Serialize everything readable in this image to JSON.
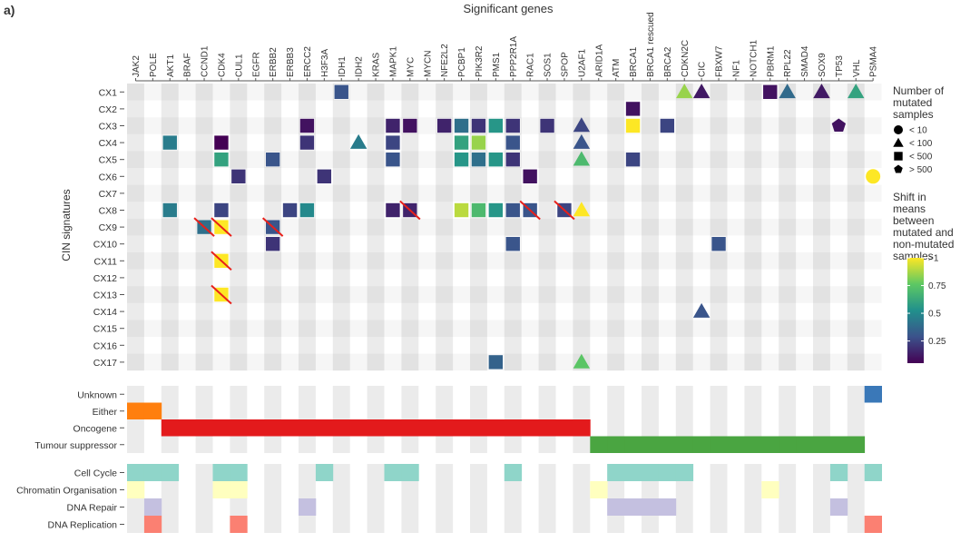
{
  "panel_label": "a)",
  "chart_data": {
    "type": "heatmap",
    "title": "Significant genes",
    "ylabel": "CIN signatures",
    "genes": [
      "JAK2",
      "POLE",
      "AKT1",
      "BRAF",
      "CCND1",
      "CDK4",
      "CUL1",
      "EGFR",
      "ERBB2",
      "ERBB3",
      "ERCC2",
      "H3F3A",
      "IDH1",
      "IDH2",
      "KRAS",
      "MAPK1",
      "MYC",
      "MYCN",
      "NFE2L2",
      "PCBP1",
      "PIK3R2",
      "PMS1",
      "PPP2R1A",
      "RAC1",
      "SOS1",
      "SPOP",
      "U2AF1",
      "ARID1A",
      "ATM",
      "BRCA1",
      "BRCA1 rescued",
      "BRCA2",
      "CDKN2C",
      "CIC",
      "FBXW7",
      "NF1",
      "NOTCH1",
      "PBRM1",
      "RPL22",
      "SMAD4",
      "SOX9",
      "TP53",
      "VHL",
      "PSMA4"
    ],
    "signatures": [
      "CX1",
      "CX2",
      "CX3",
      "CX4",
      "CX5",
      "CX6",
      "CX7",
      "CX8",
      "CX9",
      "CX10",
      "CX11",
      "CX12",
      "CX13",
      "CX14",
      "CX15",
      "CX16",
      "CX17"
    ],
    "cells": [
      {
        "sig": "CX1",
        "gene": "IDH1",
        "shape": "square",
        "shift": 0.3
      },
      {
        "sig": "CX1",
        "gene": "CDKN2C",
        "shape": "triangle",
        "shift": 0.85
      },
      {
        "sig": "CX1",
        "gene": "CIC",
        "shape": "triangle",
        "shift": 0.12
      },
      {
        "sig": "CX1",
        "gene": "PBRM1",
        "shape": "square",
        "shift": 0.1
      },
      {
        "sig": "CX1",
        "gene": "RPL22",
        "shape": "triangle",
        "shift": 0.38
      },
      {
        "sig": "CX1",
        "gene": "SOX9",
        "shape": "triangle",
        "shift": 0.12
      },
      {
        "sig": "CX1",
        "gene": "VHL",
        "shape": "triangle",
        "shift": 0.6
      },
      {
        "sig": "CX2",
        "gene": "BRCA1",
        "shape": "square",
        "shift": 0.1
      },
      {
        "sig": "CX3",
        "gene": "ERCC2",
        "shape": "square",
        "shift": 0.1
      },
      {
        "sig": "CX3",
        "gene": "MAPK1",
        "shape": "square",
        "shift": 0.15
      },
      {
        "sig": "CX3",
        "gene": "MYC",
        "shape": "square",
        "shift": 0.1
      },
      {
        "sig": "CX3",
        "gene": "NFE2L2",
        "shape": "square",
        "shift": 0.15
      },
      {
        "sig": "CX3",
        "gene": "PCBP1",
        "shape": "square",
        "shift": 0.4
      },
      {
        "sig": "CX3",
        "gene": "PIK3R2",
        "shape": "square",
        "shift": 0.2
      },
      {
        "sig": "CX3",
        "gene": "PMS1",
        "shape": "square",
        "shift": 0.55
      },
      {
        "sig": "CX3",
        "gene": "PPP2R1A",
        "shape": "square",
        "shift": 0.2
      },
      {
        "sig": "CX3",
        "gene": "SOS1",
        "shape": "square",
        "shift": 0.2
      },
      {
        "sig": "CX3",
        "gene": "U2AF1",
        "shape": "triangle",
        "shift": 0.25
      },
      {
        "sig": "CX3",
        "gene": "BRCA1",
        "shape": "square",
        "shift": 1.0
      },
      {
        "sig": "CX3",
        "gene": "BRCA2",
        "shape": "square",
        "shift": 0.25
      },
      {
        "sig": "CX3",
        "gene": "TP53",
        "shape": "pentagon",
        "shift": 0.1
      },
      {
        "sig": "CX4",
        "gene": "AKT1",
        "shape": "square",
        "shift": 0.45
      },
      {
        "sig": "CX4",
        "gene": "CDK4",
        "shape": "square",
        "shift": 0.05
      },
      {
        "sig": "CX4",
        "gene": "ERCC2",
        "shape": "square",
        "shift": 0.2
      },
      {
        "sig": "CX4",
        "gene": "IDH2",
        "shape": "triangle",
        "shift": 0.45
      },
      {
        "sig": "CX4",
        "gene": "MAPK1",
        "shape": "square",
        "shift": 0.25
      },
      {
        "sig": "CX4",
        "gene": "PCBP1",
        "shape": "square",
        "shift": 0.6
      },
      {
        "sig": "CX4",
        "gene": "PIK3R2",
        "shape": "square",
        "shift": 0.85
      },
      {
        "sig": "CX4",
        "gene": "PPP2R1A",
        "shape": "square",
        "shift": 0.3
      },
      {
        "sig": "CX4",
        "gene": "U2AF1",
        "shape": "triangle",
        "shift": 0.3
      },
      {
        "sig": "CX5",
        "gene": "CDK4",
        "shape": "square",
        "shift": 0.6
      },
      {
        "sig": "CX5",
        "gene": "ERBB2",
        "shape": "square",
        "shift": 0.3
      },
      {
        "sig": "CX5",
        "gene": "MAPK1",
        "shape": "square",
        "shift": 0.3
      },
      {
        "sig": "CX5",
        "gene": "PCBP1",
        "shape": "square",
        "shift": 0.55
      },
      {
        "sig": "CX5",
        "gene": "PIK3R2",
        "shape": "square",
        "shift": 0.4
      },
      {
        "sig": "CX5",
        "gene": "PMS1",
        "shape": "square",
        "shift": 0.55
      },
      {
        "sig": "CX5",
        "gene": "PPP2R1A",
        "shape": "square",
        "shift": 0.2
      },
      {
        "sig": "CX5",
        "gene": "U2AF1",
        "shape": "triangle",
        "shift": 0.7
      },
      {
        "sig": "CX5",
        "gene": "BRCA1",
        "shape": "square",
        "shift": 0.25
      },
      {
        "sig": "CX6",
        "gene": "CUL1",
        "shape": "square",
        "shift": 0.2
      },
      {
        "sig": "CX6",
        "gene": "H3F3A",
        "shape": "square",
        "shift": 0.2
      },
      {
        "sig": "CX6",
        "gene": "RAC1",
        "shape": "square",
        "shift": 0.1
      },
      {
        "sig": "CX6",
        "gene": "PSMA4",
        "shape": "circle",
        "shift": 1.0
      },
      {
        "sig": "CX8",
        "gene": "AKT1",
        "shape": "square",
        "shift": 0.45
      },
      {
        "sig": "CX8",
        "gene": "CDK4",
        "shape": "square",
        "shift": 0.25
      },
      {
        "sig": "CX8",
        "gene": "ERBB3",
        "shape": "square",
        "shift": 0.25
      },
      {
        "sig": "CX8",
        "gene": "ERCC2",
        "shape": "square",
        "shift": 0.5
      },
      {
        "sig": "CX8",
        "gene": "MAPK1",
        "shape": "square",
        "shift": 0.15
      },
      {
        "sig": "CX8",
        "gene": "MYC",
        "shape": "square",
        "shift": 0.15,
        "crossed": true
      },
      {
        "sig": "CX8",
        "gene": "PCBP1",
        "shape": "square",
        "shift": 0.9
      },
      {
        "sig": "CX8",
        "gene": "PIK3R2",
        "shape": "square",
        "shift": 0.7
      },
      {
        "sig": "CX8",
        "gene": "PMS1",
        "shape": "square",
        "shift": 0.55
      },
      {
        "sig": "CX8",
        "gene": "PPP2R1A",
        "shape": "square",
        "shift": 0.3
      },
      {
        "sig": "CX8",
        "gene": "RAC1",
        "shape": "square",
        "shift": 0.3,
        "crossed": true
      },
      {
        "sig": "CX8",
        "gene": "SPOP",
        "shape": "square",
        "shift": 0.25,
        "crossed": true
      },
      {
        "sig": "CX8",
        "gene": "U2AF1",
        "shape": "triangle",
        "shift": 1.0
      },
      {
        "sig": "CX9",
        "gene": "CCND1",
        "shape": "square",
        "shift": 0.4,
        "crossed": true
      },
      {
        "sig": "CX9",
        "gene": "CDK4",
        "shape": "square",
        "shift": 1.0,
        "crossed": true
      },
      {
        "sig": "CX9",
        "gene": "ERBB2",
        "shape": "square",
        "shift": 0.3,
        "crossed": true
      },
      {
        "sig": "CX10",
        "gene": "ERBB2",
        "shape": "square",
        "shift": 0.2
      },
      {
        "sig": "CX10",
        "gene": "PPP2R1A",
        "shape": "square",
        "shift": 0.3
      },
      {
        "sig": "CX10",
        "gene": "FBXW7",
        "shape": "square",
        "shift": 0.3
      },
      {
        "sig": "CX11",
        "gene": "CDK4",
        "shape": "square",
        "shift": 1.0,
        "crossed": true
      },
      {
        "sig": "CX13",
        "gene": "CDK4",
        "shape": "square",
        "shift": 1.0,
        "crossed": true
      },
      {
        "sig": "CX14",
        "gene": "CIC",
        "shape": "triangle",
        "shift": 0.3
      },
      {
        "sig": "CX17",
        "gene": "PMS1",
        "shape": "square",
        "shift": 0.35
      },
      {
        "sig": "CX17",
        "gene": "U2AF1",
        "shape": "triangle",
        "shift": 0.75
      }
    ],
    "gene_role": {
      "rows": [
        "Unknown",
        "Either",
        "Oncogene",
        "Tumour suppressor"
      ],
      "assignments": {
        "Either": [
          "JAK2",
          "POLE"
        ],
        "Oncogene": [
          "AKT1",
          "BRAF",
          "CCND1",
          "CDK4",
          "CUL1",
          "EGFR",
          "ERBB2",
          "ERBB3",
          "ERCC2",
          "H3F3A",
          "IDH1",
          "IDH2",
          "KRAS",
          "MAPK1",
          "MYC",
          "MYCN",
          "NFE2L2",
          "PCBP1",
          "PIK3R2",
          "PMS1",
          "PPP2R1A",
          "RAC1",
          "SOS1",
          "SPOP",
          "U2AF1"
        ],
        "Tumour suppressor": [
          "ARID1A",
          "ATM",
          "BRCA1",
          "BRCA1 rescued",
          "BRCA2",
          "CDKN2C",
          "CIC",
          "FBXW7",
          "NF1",
          "NOTCH1",
          "PBRM1",
          "RPL22",
          "SMAD4",
          "SOX9",
          "TP53",
          "VHL"
        ],
        "Unknown": [
          "PSMA4"
        ]
      },
      "colors": {
        "Unknown": "#3a78b8",
        "Either": "#ff7f0e",
        "Oncogene": "#e31a1c",
        "Tumour suppressor": "#4aa541"
      }
    },
    "pathways": {
      "rows": [
        "Cell Cycle",
        "Chromatin Organisation",
        "DNA Repair",
        "DNA Replication"
      ],
      "assignments": {
        "Cell Cycle": [
          "JAK2",
          "POLE",
          "AKT1",
          "CDK4",
          "CUL1",
          "H3F3A",
          "MAPK1",
          "MYC",
          "PPP2R1A",
          "ATM",
          "BRCA1",
          "BRCA1 rescued",
          "BRCA2",
          "CDKN2C",
          "TP53",
          "PSMA4"
        ],
        "Chromatin Organisation": [
          "JAK2",
          "CDK4",
          "CUL1",
          "ARID1A",
          "PBRM1"
        ],
        "DNA Repair": [
          "POLE",
          "ERCC2",
          "ATM",
          "BRCA1",
          "BRCA1 rescued",
          "BRCA2",
          "TP53"
        ],
        "DNA Replication": [
          "POLE",
          "CUL1",
          "PSMA4"
        ]
      },
      "colors": {
        "Cell Cycle": "#8fd5c9",
        "Chromatin Organisation": "#ffffbf",
        "DNA Repair": "#c4c0e0",
        "DNA Replication": "#fb8072"
      }
    },
    "legend": {
      "shape_title": "Number of mutated samples",
      "shape_items": [
        {
          "shape": "circle",
          "label": "< 10"
        },
        {
          "shape": "triangle",
          "label": "< 100"
        },
        {
          "shape": "square",
          "label": "< 500"
        },
        {
          "shape": "pentagon",
          "label": "> 500"
        }
      ],
      "color_title": "Shift in means between mutated and non-mutated samples",
      "color_ticks": [
        {
          "value": 1.0,
          "label": ">1"
        },
        {
          "value": 0.75,
          "label": "0.75"
        },
        {
          "value": 0.5,
          "label": "0.5"
        },
        {
          "value": 0.25,
          "label": "0.25"
        }
      ],
      "color_range": [
        0.05,
        1.0
      ],
      "colormap": [
        "#440154",
        "#3b528b",
        "#21908c",
        "#5dc863",
        "#fde725"
      ],
      "placement": "right"
    }
  }
}
